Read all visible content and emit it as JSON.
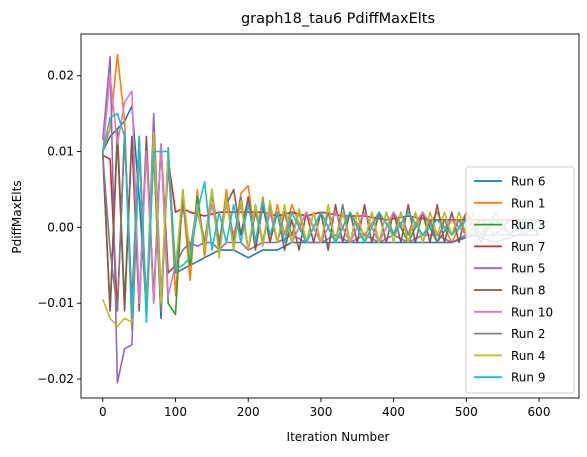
{
  "chart_data": {
    "type": "line",
    "title": "graph18_tau6 PdiffMaxElts",
    "xlabel": "Iteration Number",
    "ylabel": "PdiffMaxElts",
    "xlim": [
      -30,
      655
    ],
    "ylim": [
      -0.0225,
      0.0255
    ],
    "xticks": [
      0,
      100,
      200,
      300,
      400,
      500,
      600
    ],
    "xtick_labels": [
      "0",
      "100",
      "200",
      "300",
      "400",
      "500",
      "600"
    ],
    "yticks": [
      -0.02,
      -0.01,
      0.0,
      0.01,
      0.02
    ],
    "ytick_labels": [
      "−0.02",
      "−0.01",
      "0.00",
      "0.01",
      "0.02"
    ],
    "legend_position": "lower right",
    "grid": false,
    "series": [
      {
        "name": "Run 6",
        "color": "#1f77b4",
        "x": [
          0,
          10,
          20,
          30,
          40,
          50,
          60,
          70,
          80,
          90,
          100,
          120,
          140,
          160,
          180,
          200,
          220,
          240,
          260,
          280,
          300,
          330,
          360,
          390,
          420,
          450,
          480,
          510,
          540,
          570,
          600
        ],
        "y": [
          0.01,
          0.012,
          0.013,
          0.014,
          0.016,
          0.004,
          -0.011,
          0.01,
          -0.012,
          0.01,
          -0.006,
          -0.005,
          -0.004,
          -0.003,
          -0.003,
          -0.004,
          -0.003,
          -0.003,
          -0.002,
          -0.002,
          -0.002,
          -0.002,
          -0.002,
          -0.002,
          -0.002,
          -0.002,
          -0.002,
          -0.001,
          -0.002,
          -0.001,
          -0.001
        ]
      },
      {
        "name": "Run 1",
        "color": "#ff7f0e",
        "x": [
          0,
          10,
          20,
          30,
          40,
          50,
          60,
          70,
          80,
          90,
          100,
          110,
          120,
          130,
          140,
          150,
          160,
          170,
          180,
          190,
          200,
          210,
          220,
          230,
          240,
          250,
          260,
          280,
          300,
          320,
          340,
          360,
          380,
          400,
          420,
          440,
          460,
          480,
          500,
          520,
          540,
          560,
          580,
          600
        ],
        "y": [
          0.01,
          0.013,
          0.0228,
          0.014,
          -0.0135,
          0.011,
          -0.012,
          0.0115,
          -0.011,
          0.01,
          -0.009,
          0.004,
          -0.007,
          0.005,
          -0.004,
          0.005,
          -0.003,
          0.005,
          -0.002,
          0.0045,
          0.0055,
          -0.002,
          0.004,
          -0.002,
          0.003,
          -0.001,
          0.003,
          -0.002,
          0.002,
          -0.002,
          0.002,
          -0.001,
          0.002,
          -0.001,
          0.002,
          -0.001,
          0.002,
          -0.002,
          0.002,
          -0.001,
          0.002,
          -0.001,
          0.0015,
          -0.001
        ]
      },
      {
        "name": "Run 3",
        "color": "#2ca02c",
        "x": [
          0,
          10,
          20,
          30,
          40,
          50,
          60,
          70,
          80,
          90,
          100,
          110,
          120,
          130,
          140,
          150,
          160,
          170,
          180,
          190,
          200,
          210,
          220,
          230,
          240,
          250,
          260,
          280,
          300,
          320,
          340,
          360,
          380,
          400,
          420,
          440,
          460,
          480,
          500,
          520,
          540,
          560,
          580,
          600
        ],
        "y": [
          0.01,
          -0.011,
          0.013,
          -0.01,
          0.012,
          -0.01,
          0.011,
          -0.009,
          0.011,
          -0.01,
          -0.0115,
          0.005,
          -0.005,
          0.004,
          -0.003,
          0.0045,
          -0.003,
          0.004,
          -0.003,
          0.004,
          -0.003,
          0.003,
          -0.002,
          0.003,
          -0.002,
          0.002,
          -0.002,
          0.002,
          -0.002,
          0.002,
          -0.002,
          0.002,
          -0.002,
          0.002,
          -0.002,
          0.002,
          -0.002,
          0.001,
          -0.001,
          0.001,
          -0.001,
          0.001,
          -0.001,
          0.001
        ]
      },
      {
        "name": "Run 7",
        "color": "#d62728",
        "x": [
          0,
          10,
          20,
          30,
          40,
          50,
          60,
          70,
          80,
          90,
          100,
          110,
          120,
          140,
          160,
          180,
          200,
          220,
          240,
          260,
          280,
          300,
          330,
          360,
          390,
          420,
          450,
          480,
          510,
          540,
          570,
          600
        ],
        "y": [
          0.0095,
          0.009,
          -0.011,
          0.0125,
          -0.01,
          0.012,
          -0.011,
          0.011,
          -0.01,
          0.009,
          0.002,
          0.0025,
          0.002,
          0.0015,
          0.002,
          0.002,
          0.002,
          0.002,
          0.0015,
          0.002,
          0.0015,
          0.002,
          0.0015,
          0.0015,
          0.001,
          0.0015,
          0.001,
          0.001,
          0.001,
          0.001,
          0.001,
          0.001
        ]
      },
      {
        "name": "Run 5",
        "color": "#9467bd",
        "x": [
          0,
          10,
          20,
          30,
          40,
          50,
          60,
          70,
          80,
          90,
          100,
          110,
          120,
          130,
          140,
          150,
          160,
          170,
          180,
          190,
          200,
          220,
          240,
          260,
          280,
          300,
          320,
          340,
          360,
          380,
          400,
          420,
          440,
          460,
          480,
          500,
          520,
          540,
          560,
          580,
          600
        ],
        "y": [
          0.0115,
          0.0225,
          -0.0205,
          -0.016,
          -0.0155,
          0.01,
          -0.011,
          0.015,
          -0.009,
          0.008,
          -0.005,
          -0.003,
          -0.002,
          -0.0025,
          -0.002,
          -0.002,
          -0.003,
          -0.002,
          -0.002,
          -0.002,
          -0.003,
          -0.002,
          -0.002,
          -0.001,
          -0.002,
          -0.002,
          -0.001,
          -0.002,
          -0.001,
          -0.002,
          -0.001,
          -0.002,
          -0.001,
          -0.001,
          -0.002,
          -0.001,
          -0.001,
          -0.001,
          -0.001,
          -0.001,
          -0.001
        ]
      },
      {
        "name": "Run 8",
        "color": "#8c564b",
        "x": [
          0,
          10,
          20,
          30,
          40,
          50,
          60,
          70,
          80,
          90,
          100,
          110,
          120,
          130,
          140,
          150,
          160,
          170,
          180,
          190,
          200,
          210,
          220,
          230,
          240,
          250,
          260,
          270,
          280,
          290,
          300,
          310,
          320,
          330,
          340,
          350,
          360,
          370,
          380,
          390,
          400,
          410,
          420,
          430,
          440,
          450,
          460,
          470,
          480,
          490,
          500,
          520,
          540,
          560,
          580,
          600
        ],
        "y": [
          0.0095,
          -0.011,
          0.012,
          -0.011,
          0.012,
          -0.011,
          0.012,
          -0.01,
          0.011,
          -0.006,
          -0.005,
          0.003,
          -0.003,
          0.003,
          -0.002,
          0.0045,
          -0.002,
          0.003,
          0.005,
          -0.001,
          0.004,
          -0.003,
          0.003,
          -0.002,
          0.002,
          -0.003,
          0.001,
          -0.003,
          0.002,
          -0.002,
          0.002,
          -0.003,
          0.003,
          -0.002,
          0.002,
          -0.002,
          0.003,
          -0.002,
          0.002,
          -0.002,
          0.002,
          -0.002,
          0.003,
          -0.002,
          0.002,
          -0.002,
          0.003,
          -0.002,
          0.002,
          -0.002,
          0.002,
          -0.002,
          0.002,
          -0.001,
          0.001,
          -0.001
        ]
      },
      {
        "name": "Run 10",
        "color": "#e377c2",
        "x": [
          0,
          10,
          20,
          30,
          40,
          50,
          60,
          70,
          80,
          90,
          100,
          110,
          120,
          130,
          140,
          150,
          160,
          170,
          180,
          190,
          200,
          210,
          220,
          230,
          240,
          250,
          260,
          280,
          300,
          320,
          340,
          360,
          380,
          400,
          420,
          440,
          460,
          480,
          500,
          520,
          540,
          560,
          580,
          600
        ],
        "y": [
          0.01,
          0.02,
          0.011,
          0.0165,
          0.018,
          -0.01,
          0.01,
          -0.01,
          0.011,
          -0.009,
          -0.005,
          0.003,
          -0.003,
          0.002,
          -0.002,
          0.003,
          -0.002,
          0.003,
          -0.001,
          0.003,
          -0.003,
          0.003,
          -0.002,
          0.002,
          -0.002,
          0.002,
          -0.002,
          0.002,
          -0.002,
          0.002,
          -0.002,
          0.002,
          -0.002,
          0.002,
          -0.001,
          0.002,
          -0.001,
          0.001,
          -0.001,
          0.001,
          -0.001,
          0.001,
          -0.001,
          0.001
        ]
      },
      {
        "name": "Run 2",
        "color": "#7f7f7f",
        "x": [
          0,
          10,
          20,
          30,
          40,
          50,
          60,
          70,
          80,
          90,
          100,
          110,
          120,
          130,
          140,
          150,
          160,
          170,
          180,
          190,
          200,
          210,
          220,
          230,
          240,
          250,
          260,
          270,
          280,
          290,
          300,
          310,
          320,
          330,
          340,
          350,
          360,
          370,
          380,
          390,
          400,
          410,
          420,
          430,
          440,
          450,
          460,
          470,
          480,
          490,
          500,
          520,
          540,
          560,
          580,
          600
        ],
        "y": [
          0.0095,
          -0.003,
          -0.011,
          0.0125,
          -0.011,
          0.011,
          -0.01,
          0.01,
          -0.011,
          0.0105,
          -0.006,
          0.003,
          -0.003,
          0.0025,
          -0.002,
          0.005,
          -0.002,
          0.004,
          -0.002,
          0.004,
          -0.003,
          0.002,
          -0.002,
          0.003,
          -0.002,
          0.002,
          -0.001,
          0.002,
          -0.002,
          0.002,
          -0.002,
          0.002,
          -0.002,
          0.003,
          -0.002,
          0.002,
          -0.002,
          0.002,
          -0.002,
          0.002,
          -0.001,
          0.002,
          -0.001,
          0.002,
          -0.002,
          0.001,
          -0.002,
          0.001,
          -0.001,
          0.001,
          -0.001,
          0.001,
          -0.001,
          0.001,
          -0.001,
          0.001
        ]
      },
      {
        "name": "Run 4",
        "color": "#bcbd22",
        "x": [
          0,
          10,
          20,
          30,
          40,
          50,
          60,
          70,
          80,
          90,
          100,
          110,
          120,
          130,
          140,
          150,
          160,
          170,
          180,
          190,
          200,
          210,
          220,
          230,
          240,
          250,
          260,
          270,
          280,
          290,
          300,
          310,
          320,
          330,
          340,
          350,
          360,
          370,
          380,
          390,
          400,
          410,
          420,
          430,
          440,
          450,
          460,
          470,
          480,
          490,
          500,
          510,
          520,
          540,
          560,
          580,
          600
        ],
        "y": [
          -0.0095,
          -0.012,
          -0.013,
          -0.012,
          -0.0125,
          0.011,
          -0.0115,
          0.0125,
          -0.01,
          0.01,
          -0.0055,
          0.005,
          -0.004,
          0.003,
          -0.003,
          0.005,
          -0.004,
          0.004,
          -0.003,
          0.0035,
          -0.003,
          0.003,
          -0.0025,
          0.0035,
          -0.002,
          0.003,
          -0.002,
          0.0025,
          -0.002,
          0.002,
          -0.002,
          0.003,
          -0.002,
          0.002,
          -0.002,
          0.002,
          -0.002,
          0.002,
          -0.002,
          0.002,
          -0.002,
          0.002,
          -0.002,
          0.002,
          -0.002,
          0.002,
          -0.001,
          0.002,
          -0.001,
          0.002,
          -0.001,
          0.002,
          -0.001,
          0.002,
          -0.001,
          0.0015,
          -0.001
        ]
      },
      {
        "name": "Run 9",
        "color": "#17becf",
        "x": [
          0,
          10,
          20,
          30,
          40,
          50,
          60,
          70,
          80,
          90,
          100,
          110,
          120,
          130,
          140,
          150,
          160,
          170,
          180,
          190,
          200,
          210,
          220,
          230,
          240,
          250,
          260,
          280,
          300,
          320,
          340,
          360,
          380,
          400,
          420,
          440,
          460,
          480,
          500,
          520,
          540,
          560,
          580,
          600
        ],
        "y": [
          0.01,
          0.0145,
          0.015,
          0.012,
          -0.012,
          0.012,
          -0.0125,
          0.01,
          0.01,
          0.01,
          -0.0055,
          -0.005,
          -0.004,
          0.002,
          0.006,
          -0.003,
          0.002,
          -0.002,
          0.003,
          -0.002,
          0.003,
          -0.002,
          0.0035,
          -0.001,
          0.002,
          -0.002,
          0.002,
          -0.002,
          0.002,
          -0.002,
          0.002,
          -0.002,
          0.002,
          -0.001,
          0.002,
          -0.001,
          0.001,
          -0.001,
          0.001,
          -0.001,
          0.001,
          -0.001,
          0.001,
          -0.001
        ]
      }
    ]
  }
}
